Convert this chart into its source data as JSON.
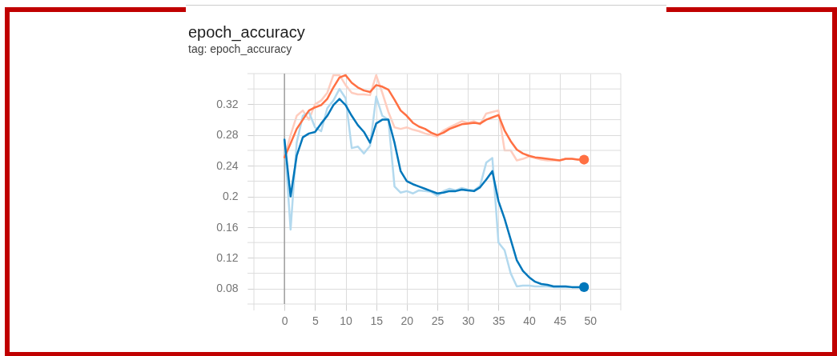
{
  "chart_data": {
    "type": "line",
    "title": "epoch_accuracy",
    "subtitle": "tag: epoch_accuracy",
    "x": [
      0,
      1,
      2,
      3,
      4,
      5,
      6,
      7,
      8,
      9,
      10,
      11,
      12,
      13,
      14,
      15,
      16,
      17,
      18,
      19,
      20,
      21,
      22,
      23,
      24,
      25,
      26,
      27,
      28,
      29,
      30,
      31,
      32,
      33,
      34,
      35,
      36,
      37,
      38,
      39,
      40,
      41,
      42,
      43,
      44,
      45,
      46,
      47,
      48,
      49
    ],
    "series": [
      {
        "color": "#ffcdbf",
        "values": [
          0.251,
          0.28,
          0.305,
          0.312,
          0.3,
          0.32,
          0.325,
          0.335,
          0.358,
          0.358,
          0.345,
          0.335,
          0.333,
          0.333,
          0.332,
          0.358,
          0.335,
          0.31,
          0.29,
          0.288,
          0.29,
          0.287,
          0.285,
          0.282,
          0.28,
          0.278,
          0.286,
          0.29,
          0.294,
          0.298,
          0.296,
          0.298,
          0.294,
          0.308,
          0.31,
          0.312,
          0.26,
          0.26,
          0.247,
          0.249,
          0.252,
          0.25,
          0.248,
          0.247,
          0.247,
          0.247,
          0.249,
          0.249,
          0.248,
          0.248
        ]
      },
      {
        "color": "#b3d9ee",
        "values": [
          0.274,
          0.157,
          0.27,
          0.305,
          0.31,
          0.29,
          0.285,
          0.315,
          0.325,
          0.34,
          0.328,
          0.263,
          0.265,
          0.256,
          0.266,
          0.33,
          0.305,
          0.3,
          0.213,
          0.205,
          0.207,
          0.204,
          0.208,
          0.207,
          0.206,
          0.201,
          0.207,
          0.21,
          0.208,
          0.211,
          0.209,
          0.208,
          0.214,
          0.244,
          0.25,
          0.14,
          0.13,
          0.1,
          0.083,
          0.084,
          0.084,
          0.083,
          0.083,
          0.083,
          0.082,
          0.082,
          0.082,
          0.082,
          0.082,
          0.082
        ]
      },
      {
        "color": "#ff7043",
        "values": [
          0.251,
          0.269,
          0.288,
          0.3,
          0.312,
          0.316,
          0.319,
          0.327,
          0.342,
          0.355,
          0.358,
          0.348,
          0.342,
          0.338,
          0.336,
          0.345,
          0.343,
          0.339,
          0.326,
          0.312,
          0.305,
          0.296,
          0.291,
          0.288,
          0.283,
          0.28,
          0.283,
          0.288,
          0.291,
          0.294,
          0.295,
          0.296,
          0.295,
          0.3,
          0.303,
          0.306,
          0.286,
          0.272,
          0.261,
          0.256,
          0.253,
          0.251,
          0.25,
          0.249,
          0.248,
          0.247,
          0.249,
          0.249,
          0.248,
          0.248
        ]
      },
      {
        "color": "#0077bb",
        "values": [
          0.274,
          0.2,
          0.253,
          0.277,
          0.282,
          0.284,
          0.295,
          0.305,
          0.319,
          0.327,
          0.319,
          0.305,
          0.293,
          0.284,
          0.27,
          0.295,
          0.3,
          0.3,
          0.27,
          0.233,
          0.22,
          0.216,
          0.213,
          0.21,
          0.207,
          0.204,
          0.205,
          0.207,
          0.207,
          0.209,
          0.208,
          0.207,
          0.212,
          0.222,
          0.233,
          0.194,
          0.171,
          0.144,
          0.117,
          0.103,
          0.095,
          0.089,
          0.086,
          0.085,
          0.083,
          0.083,
          0.083,
          0.082,
          0.082,
          0.082
        ]
      },
      {
        "type": "scatter",
        "marker": "circle",
        "color": "#ff7043",
        "x": [
          49
        ],
        "values": [
          0.248
        ]
      },
      {
        "type": "scatter",
        "marker": "circle",
        "color": "#0077bb",
        "x": [
          49
        ],
        "values": [
          0.082
        ]
      }
    ],
    "xlim": [
      -5,
      55
    ],
    "xticks": [
      {
        "value": -5,
        "label": null
      },
      0,
      5,
      10,
      15,
      20,
      25,
      30,
      35,
      40,
      45,
      50,
      {
        "value": 55,
        "label": null
      }
    ],
    "ylim": [
      0.06,
      0.36
    ],
    "yticks": [
      {
        "value": 0.06,
        "label": null
      },
      0.08,
      {
        "value": 0.1,
        "label": null
      },
      0.12,
      {
        "value": 0.14,
        "label": null
      },
      0.16,
      {
        "value": 0.18,
        "label": null
      },
      0.2,
      {
        "value": 0.22,
        "label": null
      },
      0.24,
      {
        "value": 0.26,
        "label": null
      },
      0.28,
      {
        "value": 0.3,
        "label": null
      },
      0.32,
      {
        "value": 0.34,
        "label": null
      },
      {
        "value": 0.36,
        "label": null
      }
    ],
    "ref_lines": [
      {
        "axis": "x",
        "value": 0,
        "color": "#9e9e9e"
      }
    ],
    "grid": true
  }
}
